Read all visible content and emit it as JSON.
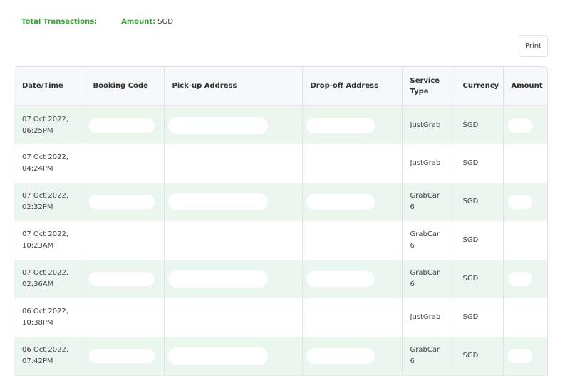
{
  "summary": {
    "total_label": "Total Transactions:",
    "amount_label": "Amount:",
    "amount_currency": "SGD"
  },
  "print_label": "Print",
  "table": {
    "headers": [
      "Date/Time",
      "Booking Code",
      "Pick-up Address",
      "Drop-off Address",
      "Service Type",
      "Currency",
      "Amount"
    ],
    "rows": [
      {
        "date": "07 Oct 2022,",
        "time": "06:25PM",
        "service": "JustGrab",
        "currency": "SGD",
        "highlight": true
      },
      {
        "date": "07 Oct 2022,",
        "time": "04:24PM",
        "service": "JustGrab",
        "currency": "SGD",
        "highlight": false
      },
      {
        "date": "07 Oct 2022,",
        "time": "02:32PM",
        "service": "GrabCar 6",
        "currency": "SGD",
        "highlight": true
      },
      {
        "date": "07 Oct 2022,",
        "time": "10:23AM",
        "service": "GrabCar 6",
        "currency": "SGD",
        "highlight": false
      },
      {
        "date": "07 Oct 2022,",
        "time": "02:36AM",
        "service": "GrabCar 6",
        "currency": "SGD",
        "highlight": true
      },
      {
        "date": "06 Oct 2022,",
        "time": "10:38PM",
        "service": "JustGrab",
        "currency": "SGD",
        "highlight": false
      },
      {
        "date": "06 Oct 2022,",
        "time": "07:42PM",
        "service": "GrabCar 6",
        "currency": "SGD",
        "highlight": true
      }
    ]
  },
  "colors": {
    "accent": "#3f9b3f",
    "row_highlight": "#ebf6ee",
    "header_bg": "#f7f8fa"
  }
}
